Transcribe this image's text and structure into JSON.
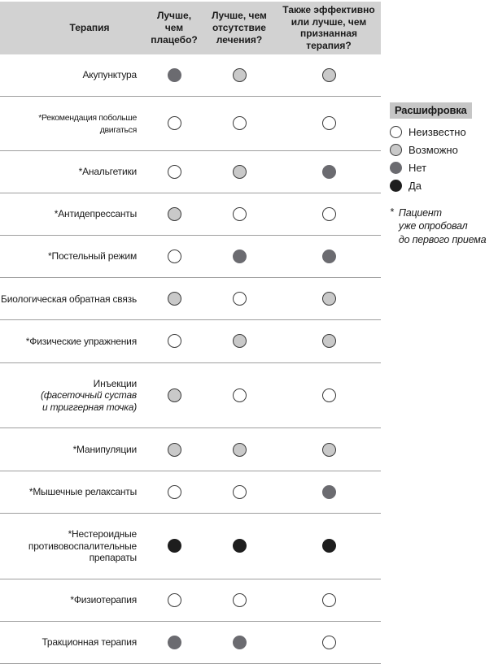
{
  "chart_data": {
    "type": "table",
    "columns": [
      {
        "label": "Терапия"
      },
      {
        "label": "Лучше,\nчем\nплацебо?"
      },
      {
        "label": "Лучше, чем\nотсутствие\nлечения?"
      },
      {
        "label": "Также эффективно\nили лучше, чем\nпризнанная терапия?"
      }
    ],
    "rows": [
      {
        "label": "Акупунктура",
        "values": [
          "no",
          "possibly",
          "possibly"
        ]
      },
      {
        "label": "*Рекомендация побольше двигаться",
        "values": [
          "unknown",
          "unknown",
          "unknown"
        ]
      },
      {
        "label": "*Анальгетики",
        "values": [
          "unknown",
          "possibly",
          "no"
        ]
      },
      {
        "label": "*Антидепрессанты",
        "values": [
          "possibly",
          "unknown",
          "unknown"
        ]
      },
      {
        "label": "*Постельный режим",
        "values": [
          "unknown",
          "no",
          "no"
        ]
      },
      {
        "label": "Биологическая обратная связь",
        "values": [
          "possibly",
          "unknown",
          "possibly"
        ]
      },
      {
        "label": "*Физические упражнения",
        "values": [
          "unknown",
          "possibly",
          "possibly"
        ]
      },
      {
        "label": "Инъекции",
        "sublabel": "(фасеточный сустав\nи триггерная точка)",
        "values": [
          "possibly",
          "unknown",
          "unknown"
        ]
      },
      {
        "label": "*Манипуляции",
        "values": [
          "possibly",
          "possibly",
          "possibly"
        ]
      },
      {
        "label": "*Мышечные релаксанты",
        "values": [
          "unknown",
          "unknown",
          "no"
        ]
      },
      {
        "label": "*Нестероидные\nпротивовоспалительные\nпрепараты",
        "values": [
          "yes",
          "yes",
          "yes"
        ]
      },
      {
        "label": "*Физиотерапия",
        "values": [
          "unknown",
          "unknown",
          "unknown"
        ]
      },
      {
        "label": "Тракционная терапия",
        "values": [
          "no",
          "no",
          "unknown"
        ]
      }
    ],
    "legend_title": "Расшифровка",
    "legend": [
      {
        "key": "unknown",
        "label": "Неизвестно",
        "color": "#ffffff"
      },
      {
        "key": "possibly",
        "label": "Возможно",
        "color": "#c9c9c9"
      },
      {
        "key": "no",
        "label": "Нет",
        "color": "#6b6b70"
      },
      {
        "key": "yes",
        "label": "Да",
        "color": "#1e1e1e"
      }
    ],
    "footnote_marker": "*",
    "footnote": "Пациент\nуже опробовал\nдо первого приема"
  },
  "colors": {
    "header_bg": "#d2d2d2",
    "legend_title_bg": "#c6c6c6",
    "circle_outline": "#3a3a3a",
    "separator": "#9e9e9e"
  }
}
